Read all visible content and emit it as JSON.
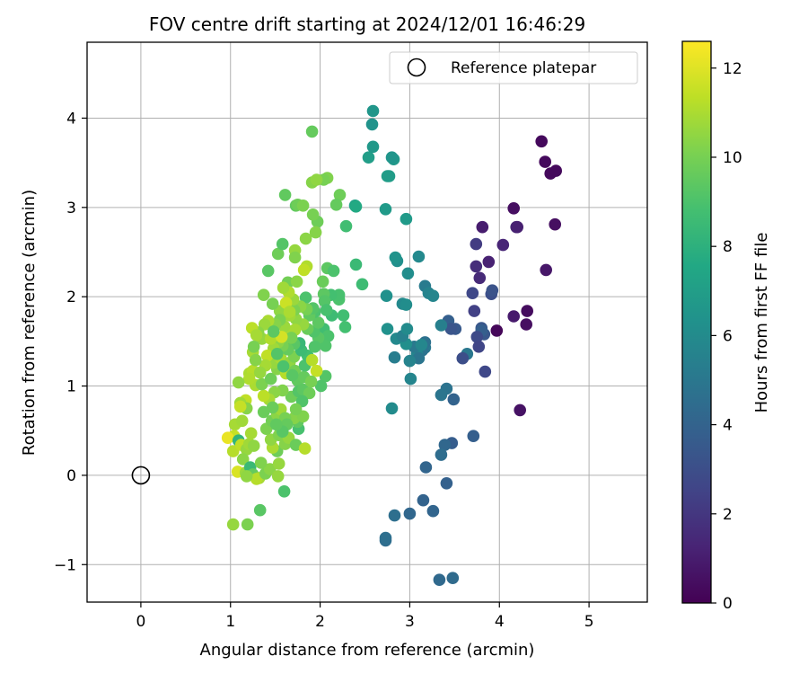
{
  "chart_data": {
    "type": "scatter",
    "title": "FOV centre drift starting at 2024/12/01 16:46:29",
    "xlabel": "Angular distance from reference (arcmin)",
    "ylabel": "Rotation from reference (arcmin)",
    "xlim": [
      -0.6,
      5.65
    ],
    "ylim": [
      -1.42,
      4.85
    ],
    "xticks": [
      0,
      1,
      2,
      3,
      4,
      5
    ],
    "xtick_labels": [
      "0",
      "1",
      "2",
      "3",
      "4",
      "5"
    ],
    "yticks": [
      -1,
      0,
      1,
      2,
      3,
      4
    ],
    "ytick_labels": [
      "−1",
      "0",
      "1",
      "2",
      "3",
      "4"
    ],
    "grid": true,
    "legend": {
      "position": "top-right",
      "entries": [
        "Reference platepar"
      ]
    },
    "reference_point": {
      "x": 0,
      "y": 0
    },
    "colorbar": {
      "label": "Hours from first FF file",
      "range": [
        0,
        12.6
      ],
      "ticks": [
        0,
        2,
        4,
        6,
        8,
        10,
        12
      ],
      "tick_labels": [
        "0",
        "2",
        "4",
        "6",
        "8",
        "10",
        "12"
      ],
      "colormap": "viridis"
    },
    "points": [
      [
        4.47,
        3.74,
        0.3
      ],
      [
        4.51,
        3.51,
        0.3
      ],
      [
        4.57,
        3.38,
        0.3
      ],
      [
        4.63,
        3.41,
        0.3
      ],
      [
        4.62,
        2.81,
        0.5
      ],
      [
        4.52,
        2.3,
        0.8
      ],
      [
        4.31,
        1.84,
        0.4
      ],
      [
        4.3,
        1.69,
        0.5
      ],
      [
        4.23,
        0.73,
        0.6
      ],
      [
        4.16,
        1.78,
        0.9
      ],
      [
        4.16,
        2.99,
        0.5
      ],
      [
        4.19,
        2.78,
        1.4
      ],
      [
        4.2,
        2.78,
        1.1
      ],
      [
        3.97,
        1.62,
        0.2
      ],
      [
        4.04,
        2.58,
        1.3
      ],
      [
        3.81,
        2.78,
        1.0
      ],
      [
        3.88,
        2.39,
        1.2
      ],
      [
        3.74,
        2.59,
        2.2
      ],
      [
        3.74,
        2.34,
        1.6
      ],
      [
        3.78,
        2.21,
        1.5
      ],
      [
        3.7,
        2.04,
        2.7
      ],
      [
        3.72,
        1.84,
        2.4
      ],
      [
        3.91,
        2.03,
        3.0
      ],
      [
        3.92,
        2.07,
        3.2
      ],
      [
        3.8,
        1.65,
        3.4
      ],
      [
        3.83,
        1.58,
        3.4
      ],
      [
        3.8,
        1.62,
        3.8
      ],
      [
        3.75,
        1.55,
        2.8
      ],
      [
        3.77,
        1.44,
        2.6
      ],
      [
        3.84,
        1.16,
        2.7
      ],
      [
        3.64,
        1.36,
        5.0
      ],
      [
        3.59,
        1.31,
        3.0
      ],
      [
        3.51,
        1.64,
        3.5
      ],
      [
        3.43,
        1.73,
        3.8
      ],
      [
        3.46,
        1.64,
        3.3
      ],
      [
        3.49,
        0.85,
        4.0
      ],
      [
        3.41,
        0.97,
        4.8
      ],
      [
        3.35,
        0.9,
        4.9
      ],
      [
        3.35,
        1.68,
        5.4
      ],
      [
        3.71,
        0.44,
        3.8
      ],
      [
        3.47,
        0.36,
        3.7
      ],
      [
        3.39,
        0.34,
        4.2
      ],
      [
        3.35,
        0.23,
        4.5
      ],
      [
        3.41,
        -0.09,
        3.9
      ],
      [
        3.18,
        0.09,
        4.1
      ],
      [
        3.15,
        -0.28,
        4.0
      ],
      [
        3.26,
        -0.4,
        4.1
      ],
      [
        3.0,
        -0.43,
        4.2
      ],
      [
        2.83,
        -0.45,
        4.6
      ],
      [
        2.73,
        -0.73,
        4.5
      ],
      [
        2.73,
        -0.7,
        4.6
      ],
      [
        3.48,
        -1.15,
        4.4
      ],
      [
        3.33,
        -1.17,
        4.3
      ],
      [
        3.17,
        1.43,
        5.0
      ],
      [
        3.14,
        1.4,
        4.8
      ],
      [
        3.17,
        1.49,
        4.7
      ],
      [
        3.08,
        1.36,
        5.7
      ],
      [
        3.05,
        1.44,
        5.1
      ],
      [
        3.1,
        1.31,
        4.9
      ],
      [
        3.13,
        1.46,
        5.8
      ],
      [
        3.0,
        1.28,
        5.6
      ],
      [
        3.01,
        1.08,
        5.7
      ],
      [
        2.8,
        0.75,
        6.0
      ],
      [
        2.83,
        1.32,
        5.3
      ],
      [
        2.85,
        1.53,
        5.9
      ],
      [
        2.96,
        1.47,
        6.2
      ],
      [
        2.92,
        1.56,
        5.5
      ],
      [
        2.75,
        1.64,
        6.3
      ],
      [
        2.97,
        1.64,
        6.0
      ],
      [
        2.92,
        1.92,
        5.9
      ],
      [
        2.96,
        1.91,
        6.1
      ],
      [
        3.17,
        2.12,
        5.2
      ],
      [
        3.21,
        2.04,
        5.6
      ],
      [
        3.26,
        2.01,
        5.7
      ],
      [
        3.1,
        2.45,
        5.9
      ],
      [
        2.98,
        2.26,
        6.1
      ],
      [
        2.86,
        2.4,
        6.2
      ],
      [
        2.84,
        2.44,
        6.4
      ],
      [
        2.74,
        2.01,
        6.3
      ],
      [
        2.73,
        2.98,
        6.8
      ],
      [
        2.96,
        2.87,
        6.8
      ],
      [
        2.75,
        3.35,
        7.0
      ],
      [
        2.77,
        3.35,
        6.9
      ],
      [
        2.82,
        3.54,
        6.7
      ],
      [
        2.8,
        3.56,
        6.5
      ],
      [
        2.54,
        3.56,
        7.0
      ],
      [
        2.59,
        3.68,
        6.7
      ],
      [
        2.58,
        3.93,
        6.4
      ],
      [
        2.59,
        4.08,
        6.6
      ],
      [
        2.39,
        3.02,
        7.3
      ],
      [
        2.4,
        3.01,
        7.6
      ],
      [
        2.47,
        2.14,
        8.6
      ],
      [
        2.4,
        2.36,
        8.5
      ],
      [
        2.29,
        2.79,
        8.7
      ],
      [
        2.26,
        1.79,
        8.7
      ],
      [
        2.21,
        1.97,
        9.0
      ],
      [
        2.28,
        1.66,
        8.8
      ],
      [
        2.13,
        1.79,
        8.6
      ],
      [
        2.21,
        2.02,
        8.9
      ],
      [
        2.22,
        3.14,
        9.8
      ],
      [
        2.18,
        3.03,
        9.6
      ],
      [
        2.08,
        3.33,
        10.2
      ],
      [
        2.04,
        3.31,
        10.0
      ],
      [
        1.91,
        3.85,
        9.6
      ],
      [
        1.91,
        3.28,
        10.3
      ],
      [
        1.96,
        3.31,
        10.5
      ],
      [
        1.97,
        2.84,
        9.8
      ],
      [
        1.92,
        2.92,
        10.0
      ],
      [
        1.95,
        2.72,
        10.3
      ],
      [
        1.73,
        3.02,
        9.5
      ],
      [
        1.75,
        3.03,
        9.8
      ],
      [
        1.81,
        3.02,
        10.1
      ],
      [
        1.84,
        2.65,
        10.4
      ],
      [
        1.72,
        2.52,
        10.6
      ],
      [
        1.72,
        2.44,
        10.2
      ],
      [
        1.53,
        2.48,
        9.8
      ],
      [
        1.61,
        3.14,
        9.5
      ],
      [
        1.58,
        2.59,
        9.2
      ],
      [
        1.42,
        2.29,
        9.3
      ],
      [
        1.64,
        2.16,
        9.9
      ],
      [
        1.74,
        2.17,
        10.4
      ],
      [
        1.85,
        2.34,
        11.1
      ],
      [
        1.82,
        2.3,
        11.4
      ],
      [
        2.03,
        2.17,
        9.7
      ],
      [
        2.08,
        2.32,
        9.4
      ],
      [
        2.15,
        2.29,
        9.0
      ],
      [
        2.12,
        2.02,
        8.8
      ],
      [
        2.04,
        2.03,
        9.4
      ],
      [
        2.05,
        1.95,
        9.2
      ],
      [
        2.07,
        1.85,
        8.9
      ],
      [
        2.04,
        1.64,
        8.7
      ],
      [
        2.09,
        1.56,
        9.0
      ],
      [
        2.06,
        1.45,
        9.1
      ],
      [
        1.98,
        1.54,
        9.3
      ],
      [
        2.06,
        1.11,
        9.2
      ],
      [
        2.01,
        1.0,
        9.1
      ],
      [
        1.93,
        1.61,
        9.1
      ],
      [
        1.98,
        1.71,
        9.4
      ],
      [
        1.94,
        1.83,
        9.0
      ],
      [
        1.88,
        1.79,
        9.5
      ],
      [
        1.86,
        1.64,
        9.7
      ],
      [
        1.92,
        1.87,
        9.2
      ],
      [
        1.84,
        1.99,
        9.0
      ],
      [
        1.85,
        1.86,
        10.0
      ],
      [
        1.78,
        1.89,
        10.4
      ],
      [
        1.81,
        1.69,
        10.6
      ],
      [
        1.73,
        1.75,
        10.5
      ],
      [
        1.71,
        1.85,
        10.1
      ],
      [
        1.66,
        1.79,
        10.8
      ],
      [
        1.72,
        1.63,
        10.9
      ],
      [
        1.66,
        1.54,
        11.0
      ],
      [
        1.62,
        1.63,
        10.9
      ],
      [
        1.6,
        1.67,
        10.7
      ],
      [
        1.55,
        1.84,
        10.5
      ],
      [
        1.55,
        1.74,
        10.1
      ],
      [
        1.5,
        1.69,
        10.3
      ],
      [
        1.47,
        1.92,
        10.0
      ],
      [
        1.37,
        2.02,
        10.2
      ],
      [
        1.42,
        1.73,
        11.0
      ],
      [
        1.38,
        1.69,
        10.7
      ],
      [
        1.35,
        1.53,
        10.6
      ],
      [
        1.31,
        1.6,
        10.4
      ],
      [
        1.24,
        1.65,
        11.3
      ],
      [
        1.29,
        1.57,
        10.9
      ],
      [
        1.25,
        1.38,
        10.9
      ],
      [
        1.21,
        1.14,
        11.0
      ],
      [
        1.25,
        1.17,
        11.2
      ],
      [
        1.28,
        1.01,
        11.0
      ],
      [
        1.21,
        1.08,
        11.1
      ],
      [
        1.17,
        0.84,
        11.4
      ],
      [
        1.11,
        0.81,
        10.8
      ],
      [
        1.18,
        0.75,
        10.3
      ],
      [
        1.09,
        1.04,
        10.5
      ],
      [
        1.11,
        0.77,
        11.5
      ],
      [
        1.05,
        0.57,
        10.9
      ],
      [
        1.04,
        0.44,
        11.5
      ],
      [
        0.97,
        0.42,
        12.2
      ],
      [
        1.03,
        0.27,
        11.2
      ],
      [
        1.09,
        0.39,
        8.2
      ],
      [
        1.13,
        0.61,
        10.8
      ],
      [
        1.12,
        0.34,
        11.4
      ],
      [
        1.18,
        0.29,
        10.6
      ],
      [
        1.21,
        0.35,
        10.8
      ],
      [
        1.23,
        0.47,
        10.9
      ],
      [
        1.26,
        0.33,
        10.5
      ],
      [
        1.14,
        0.18,
        10.4
      ],
      [
        1.08,
        0.04,
        11.9
      ],
      [
        1.17,
        0.03,
        10.7
      ],
      [
        1.22,
        0.09,
        8.5
      ],
      [
        1.25,
        0.01,
        9.6
      ],
      [
        1.32,
        -0.03,
        10.9
      ],
      [
        1.29,
        -0.04,
        11.2
      ],
      [
        1.18,
        -0.01,
        10.5
      ],
      [
        1.39,
        0.02,
        10.1
      ],
      [
        1.44,
        0.07,
        10.4
      ],
      [
        1.34,
        0.14,
        10.2
      ],
      [
        1.54,
        0.13,
        10.6
      ],
      [
        1.52,
        0.27,
        9.8
      ],
      [
        1.47,
        0.31,
        11.0
      ],
      [
        1.45,
        0.4,
        10.5
      ],
      [
        1.54,
        0.45,
        10.2
      ],
      [
        1.61,
        0.35,
        10.3
      ],
      [
        1.65,
        0.42,
        10.6
      ],
      [
        1.73,
        0.34,
        9.7
      ],
      [
        1.76,
        0.52,
        8.9
      ],
      [
        1.75,
        0.6,
        9.5
      ],
      [
        1.71,
        0.64,
        10.3
      ],
      [
        1.81,
        0.66,
        10.2
      ],
      [
        1.83,
        0.3,
        11.2
      ],
      [
        1.53,
        -0.01,
        10.6
      ],
      [
        1.6,
        -0.18,
        9.0
      ],
      [
        1.33,
        -0.39,
        9.3
      ],
      [
        1.19,
        -0.55,
        10.1
      ],
      [
        1.03,
        -0.55,
        10.6
      ],
      [
        1.4,
        0.52,
        10.1
      ],
      [
        1.37,
        0.71,
        9.7
      ],
      [
        1.46,
        0.61,
        9.9
      ],
      [
        1.52,
        0.68,
        10.4
      ],
      [
        1.56,
        0.74,
        10.8
      ],
      [
        1.61,
        0.64,
        10.0
      ],
      [
        1.68,
        0.88,
        9.8
      ],
      [
        1.58,
        0.95,
        10.2
      ],
      [
        1.49,
        0.93,
        10.4
      ],
      [
        1.43,
        0.85,
        10.9
      ],
      [
        1.37,
        0.89,
        11.3
      ],
      [
        1.35,
        1.02,
        10.1
      ],
      [
        1.45,
        1.08,
        9.8
      ],
      [
        1.52,
        1.19,
        10.3
      ],
      [
        1.48,
        1.26,
        10.6
      ],
      [
        1.56,
        1.31,
        10.9
      ],
      [
        1.62,
        1.14,
        11.2
      ],
      [
        1.66,
        1.26,
        10.5
      ],
      [
        1.71,
        1.33,
        10.1
      ],
      [
        1.72,
        1.17,
        9.9
      ],
      [
        1.75,
        1.06,
        9.5
      ],
      [
        1.76,
        0.94,
        9.2
      ],
      [
        1.81,
        0.96,
        9.4
      ],
      [
        1.82,
        1.1,
        9.6
      ],
      [
        1.83,
        1.23,
        9.0
      ],
      [
        1.86,
        1.34,
        8.8
      ],
      [
        1.79,
        1.4,
        8.6
      ],
      [
        1.77,
        1.48,
        8.4
      ],
      [
        1.71,
        1.47,
        9.3
      ],
      [
        1.64,
        1.41,
        9.6
      ],
      [
        1.58,
        1.45,
        10.0
      ],
      [
        1.53,
        1.49,
        10.4
      ],
      [
        1.48,
        1.42,
        10.8
      ],
      [
        1.45,
        1.53,
        11.1
      ],
      [
        1.41,
        1.34,
        11.4
      ],
      [
        1.39,
        1.23,
        10.9
      ],
      [
        1.33,
        1.15,
        10.6
      ],
      [
        1.28,
        1.29,
        10.3
      ],
      [
        1.26,
        1.44,
        10.0
      ],
      [
        1.94,
        1.44,
        9.1
      ],
      [
        1.91,
        1.29,
        11.2
      ],
      [
        1.96,
        1.17,
        11.5
      ],
      [
        1.9,
        1.05,
        10.0
      ],
      [
        1.88,
        0.92,
        9.8
      ],
      [
        1.8,
        0.83,
        9.1
      ],
      [
        1.68,
        1.54,
        10.0
      ],
      [
        1.7,
        1.97,
        10.7
      ],
      [
        1.65,
        2.05,
        11.1
      ],
      [
        1.59,
        2.1,
        10.8
      ],
      [
        1.62,
        1.93,
        11.6
      ],
      [
        1.66,
        1.83,
        11.0
      ],
      [
        1.57,
        1.55,
        11.8
      ],
      [
        1.48,
        1.61,
        9.4
      ],
      [
        1.52,
        1.36,
        9.2
      ],
      [
        1.59,
        1.22,
        9.0
      ],
      [
        1.69,
        1.12,
        9.3
      ],
      [
        1.73,
        0.74,
        10.0
      ],
      [
        1.63,
        0.57,
        9.6
      ],
      [
        1.58,
        0.49,
        9.3
      ],
      [
        1.51,
        0.57,
        9.5
      ],
      [
        1.47,
        0.76,
        9.7
      ]
    ]
  }
}
